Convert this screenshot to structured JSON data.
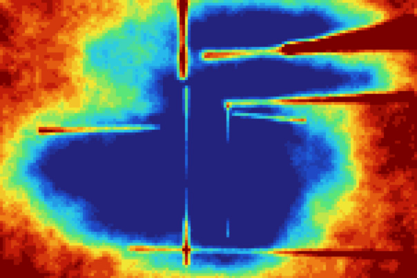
{
  "image": {
    "kind": "false-color heatmap",
    "colormap": "jet-like",
    "palette": {
      "dark_red": "#7a0000",
      "red": "#c81e0a",
      "orange": "#f07814",
      "yellow": "#f5e632",
      "green": "#5ae678",
      "cyan": "#28c8f0",
      "blue": "#1e50d2",
      "deep_blue": "#23237d"
    }
  }
}
